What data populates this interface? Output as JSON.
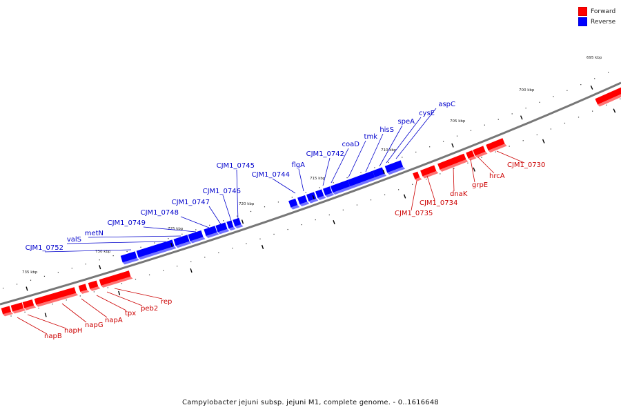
{
  "legend": {
    "items": [
      {
        "label": "Forward",
        "color": "#ff0000"
      },
      {
        "label": "Reverse",
        "color": "#0000ff"
      }
    ]
  },
  "caption": "Campylobacter jejuni subsp. jejuni M1, complete genome. - 0..1616648",
  "colors": {
    "forward": "#ff0000",
    "reverse": "#0000ff",
    "forward_label": "#cc0000",
    "reverse_label": "#0000cc",
    "backbone": "#777777"
  },
  "ticks": [
    "695 kbp",
    "700 kbp",
    "705 kbp",
    "710 kbp",
    "715 kbp",
    "720 kbp",
    "725 kbp",
    "730 kbp",
    "735 kbp"
  ],
  "genes": {
    "forward": [
      "CJM1_0730",
      "hrcA",
      "grpE",
      "dnaK",
      "CJM1_0734",
      "CJM1_0735",
      "rep",
      "peb2",
      "tpx",
      "napA",
      "napG",
      "napH",
      "napB"
    ],
    "reverse": [
      "aspC",
      "cysE",
      "speA",
      "hisS",
      "tmk",
      "coaD",
      "CJM1_0742",
      "flgA",
      "CJM1_0744",
      "CJM1_0745",
      "CJM1_0746",
      "CJM1_0747",
      "CJM1_0748",
      "CJM1_0749",
      "metN",
      "valS",
      "CJM1_0752"
    ]
  }
}
